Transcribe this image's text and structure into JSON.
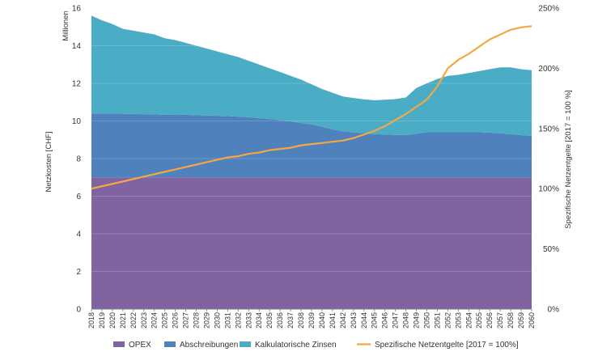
{
  "chart_data": {
    "type": "area",
    "unit_label": "Millionen",
    "ylabel_left": "Netzkosten [CHF]",
    "ylabel_right": "Spezifische Netzentgelte [2017 = 100 %]",
    "ylim_left": [
      0,
      16
    ],
    "yticks_left": [
      "0",
      "2",
      "4",
      "6",
      "8",
      "10",
      "12",
      "14",
      "16"
    ],
    "ylim_right": [
      0,
      250
    ],
    "yticks_right": [
      "0%",
      "50%",
      "100%",
      "150%",
      "200%",
      "250%"
    ],
    "x": [
      "2018",
      "2019",
      "2020",
      "2021",
      "2022",
      "2023",
      "2024",
      "2025",
      "2026",
      "2027",
      "2028",
      "2029",
      "2030",
      "2031",
      "2032",
      "2033",
      "2034",
      "2035",
      "2036",
      "2037",
      "2038",
      "2039",
      "2040",
      "2041",
      "2042",
      "2043",
      "2044",
      "2045",
      "2046",
      "2047",
      "2048",
      "2049",
      "2050",
      "2051",
      "2052",
      "2053",
      "2054",
      "2055",
      "2056",
      "2057",
      "2058",
      "2059",
      "2060"
    ],
    "series": [
      {
        "name": "OPEX",
        "kind": "stacked-area",
        "color": "#8064a2",
        "values": [
          7.0,
          7.0,
          7.0,
          7.0,
          7.0,
          7.0,
          7.0,
          7.0,
          7.0,
          7.0,
          7.0,
          7.0,
          7.0,
          7.0,
          7.0,
          7.0,
          7.0,
          7.0,
          7.0,
          7.0,
          7.0,
          7.0,
          7.0,
          7.0,
          7.0,
          7.0,
          7.0,
          7.0,
          7.0,
          7.0,
          7.0,
          7.0,
          7.0,
          7.0,
          7.0,
          7.0,
          7.0,
          7.0,
          7.0,
          7.0,
          7.0,
          7.0,
          7.0
        ]
      },
      {
        "name": "Abschreibungen",
        "kind": "stacked-area",
        "color": "#4f81bd",
        "values": [
          3.4,
          3.4,
          3.4,
          3.38,
          3.37,
          3.36,
          3.35,
          3.33,
          3.32,
          3.33,
          3.3,
          3.29,
          3.28,
          3.26,
          3.23,
          3.2,
          3.15,
          3.1,
          3.05,
          2.98,
          2.9,
          2.82,
          2.7,
          2.55,
          2.45,
          2.4,
          2.35,
          2.3,
          2.28,
          2.26,
          2.25,
          2.33,
          2.4,
          2.4,
          2.4,
          2.4,
          2.4,
          2.4,
          2.38,
          2.35,
          2.3,
          2.25,
          2.2
        ]
      },
      {
        "name": "Kalkulatorische Zinsen",
        "kind": "stacked-area",
        "color": "#4bacc6",
        "values": [
          5.2,
          4.95,
          4.75,
          4.52,
          4.43,
          4.34,
          4.25,
          4.07,
          3.98,
          3.82,
          3.7,
          3.56,
          3.42,
          3.29,
          3.17,
          3.0,
          2.85,
          2.7,
          2.55,
          2.42,
          2.3,
          2.13,
          2.0,
          1.95,
          1.85,
          1.82,
          1.8,
          1.8,
          1.85,
          1.9,
          2.0,
          2.42,
          2.6,
          2.83,
          3.0,
          3.05,
          3.15,
          3.25,
          3.37,
          3.5,
          3.55,
          3.5,
          3.5
        ]
      },
      {
        "name": "Spezifische Netzentgelte [2017 = 100%]",
        "kind": "line",
        "axis": "right",
        "color": "#f5a742",
        "values": [
          100,
          102,
          104,
          106,
          108,
          110,
          112,
          114,
          116,
          118,
          120,
          122,
          124,
          126,
          127,
          129,
          130,
          132,
          133,
          134,
          136,
          137,
          138,
          139,
          140,
          142,
          145,
          148,
          152,
          157,
          162,
          168,
          174,
          185,
          200,
          207,
          212,
          218,
          224,
          228,
          232,
          234,
          235
        ]
      }
    ],
    "legend": [
      "OPEX",
      "Abschreibungen",
      "Kalkulatorische Zinsen",
      "Spezifische Netzentgelte [2017 = 100%]"
    ],
    "legend_position": "bottom"
  }
}
